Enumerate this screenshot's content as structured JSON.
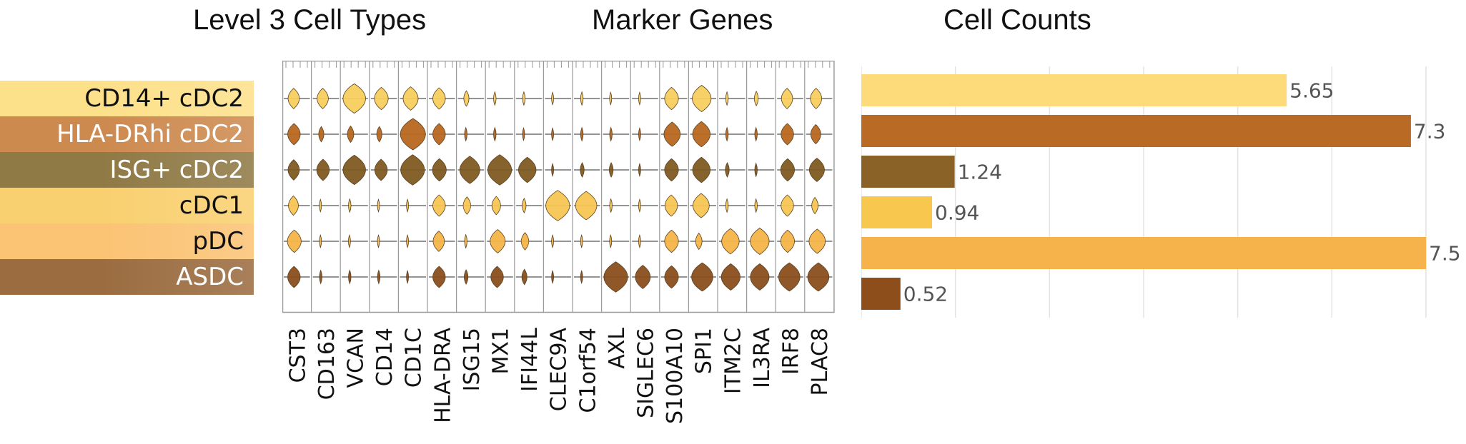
{
  "titles": {
    "cell_types": "Level 3 Cell Types",
    "marker_genes": "Marker Genes",
    "cell_counts": "Cell Counts"
  },
  "cell_types": [
    {
      "label": "CD14+ cDC2",
      "color": "#fde08a",
      "text_color": "#111111"
    },
    {
      "label": "HLA-DRhi cDC2",
      "color": "#cd8a4f",
      "text_color": "#ffffff"
    },
    {
      "label": "ISG+ cDC2",
      "color": "#8f7945",
      "text_color": "#ffffff"
    },
    {
      "label": "cDC1",
      "color": "#f9d070",
      "text_color": "#111111"
    },
    {
      "label": "pDC",
      "color": "#fbc374",
      "text_color": "#111111"
    },
    {
      "label": "ASDC",
      "color": "#9b6c40",
      "text_color": "#ffffff"
    }
  ],
  "violin_colors": [
    "#f7cd5e",
    "#b8671f",
    "#7f5a22",
    "#f7c552",
    "#f5b548",
    "#8a4e1c"
  ],
  "marker_genes": [
    "CST3",
    "CD163",
    "VCAN",
    "CD14",
    "CD1C",
    "HLA-DRA",
    "ISG15",
    "MX1",
    "IFI44L",
    "CLEC9A",
    "C1orf54",
    "AXL",
    "SIGLEC6",
    "S100A10",
    "SPI1",
    "ITM2C",
    "IL3RA",
    "IRF8",
    "PLAC8"
  ],
  "expression": [
    [
      0.45,
      0.45,
      0.9,
      0.55,
      0.6,
      0.5,
      0.2,
      0.1,
      0.1,
      0.05,
      0.1,
      0.05,
      0.05,
      0.55,
      0.75,
      0.1,
      0.15,
      0.45,
      0.45
    ],
    [
      0.5,
      0.2,
      0.25,
      0.2,
      1.0,
      0.5,
      0.1,
      0.1,
      0.05,
      0.05,
      0.1,
      0.1,
      0.05,
      0.65,
      0.7,
      0.1,
      0.1,
      0.5,
      0.4
    ],
    [
      0.45,
      0.5,
      0.9,
      0.5,
      0.95,
      0.55,
      0.8,
      0.95,
      0.7,
      0.05,
      0.15,
      0.15,
      0.05,
      0.55,
      0.7,
      0.15,
      0.1,
      0.55,
      0.6
    ],
    [
      0.4,
      0.05,
      0.1,
      0.05,
      0.05,
      0.5,
      0.3,
      0.35,
      0.15,
      0.95,
      0.85,
      0.1,
      0.05,
      0.5,
      0.65,
      0.1,
      0.1,
      0.5,
      0.25
    ],
    [
      0.55,
      0.05,
      0.05,
      0.05,
      0.05,
      0.45,
      0.1,
      0.6,
      0.3,
      0.05,
      0.05,
      0.05,
      0.05,
      0.55,
      0.25,
      0.7,
      0.75,
      0.55,
      0.65
    ],
    [
      0.5,
      0.1,
      0.1,
      0.1,
      0.05,
      0.5,
      0.15,
      0.5,
      0.2,
      0.05,
      0.05,
      0.95,
      0.6,
      0.55,
      0.85,
      0.75,
      0.75,
      0.85,
      0.85
    ]
  ],
  "chart_data": {
    "type": "bar",
    "title": "Cell Counts",
    "categories": [
      "CD14+ cDC2",
      "HLA-DRhi cDC2",
      "ISG+ cDC2",
      "cDC1",
      "pDC",
      "ASDC"
    ],
    "values": [
      5.65,
      7.3,
      1.24,
      0.94,
      7.5,
      0.52
    ],
    "value_labels": [
      "5.65",
      "7.3",
      "1.24",
      "0.94",
      "7.5",
      "0.52"
    ],
    "colors": [
      "#fddb7a",
      "#b96a24",
      "#8a6228",
      "#f8c84e",
      "#f6b34b",
      "#8d4e1c"
    ],
    "xlim": [
      0,
      7.5
    ],
    "grid": true,
    "legend": "none"
  }
}
